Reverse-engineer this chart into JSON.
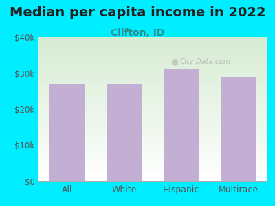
{
  "title": "Median per capita income in 2022",
  "subtitle": "Clifton, ID",
  "categories": [
    "All",
    "White",
    "Hispanic",
    "Multirace"
  ],
  "values": [
    27000,
    27000,
    31000,
    29000
  ],
  "bar_color": "#c4afd4",
  "background_color": "#00eeff",
  "plot_bg_topleft": "#d6ecd2",
  "plot_bg_topright": "#e8f4f8",
  "plot_bg_bottom": "#ffffff",
  "title_color": "#222222",
  "subtitle_color": "#2d8b8b",
  "tick_color": "#555555",
  "ylim": [
    0,
    40000
  ],
  "yticks": [
    0,
    10000,
    20000,
    30000,
    40000
  ],
  "ytick_labels": [
    "$0",
    "$10k",
    "$20k",
    "$30k",
    "$40k"
  ],
  "title_fontsize": 14,
  "subtitle_fontsize": 10,
  "watermark": "City-Data.com"
}
